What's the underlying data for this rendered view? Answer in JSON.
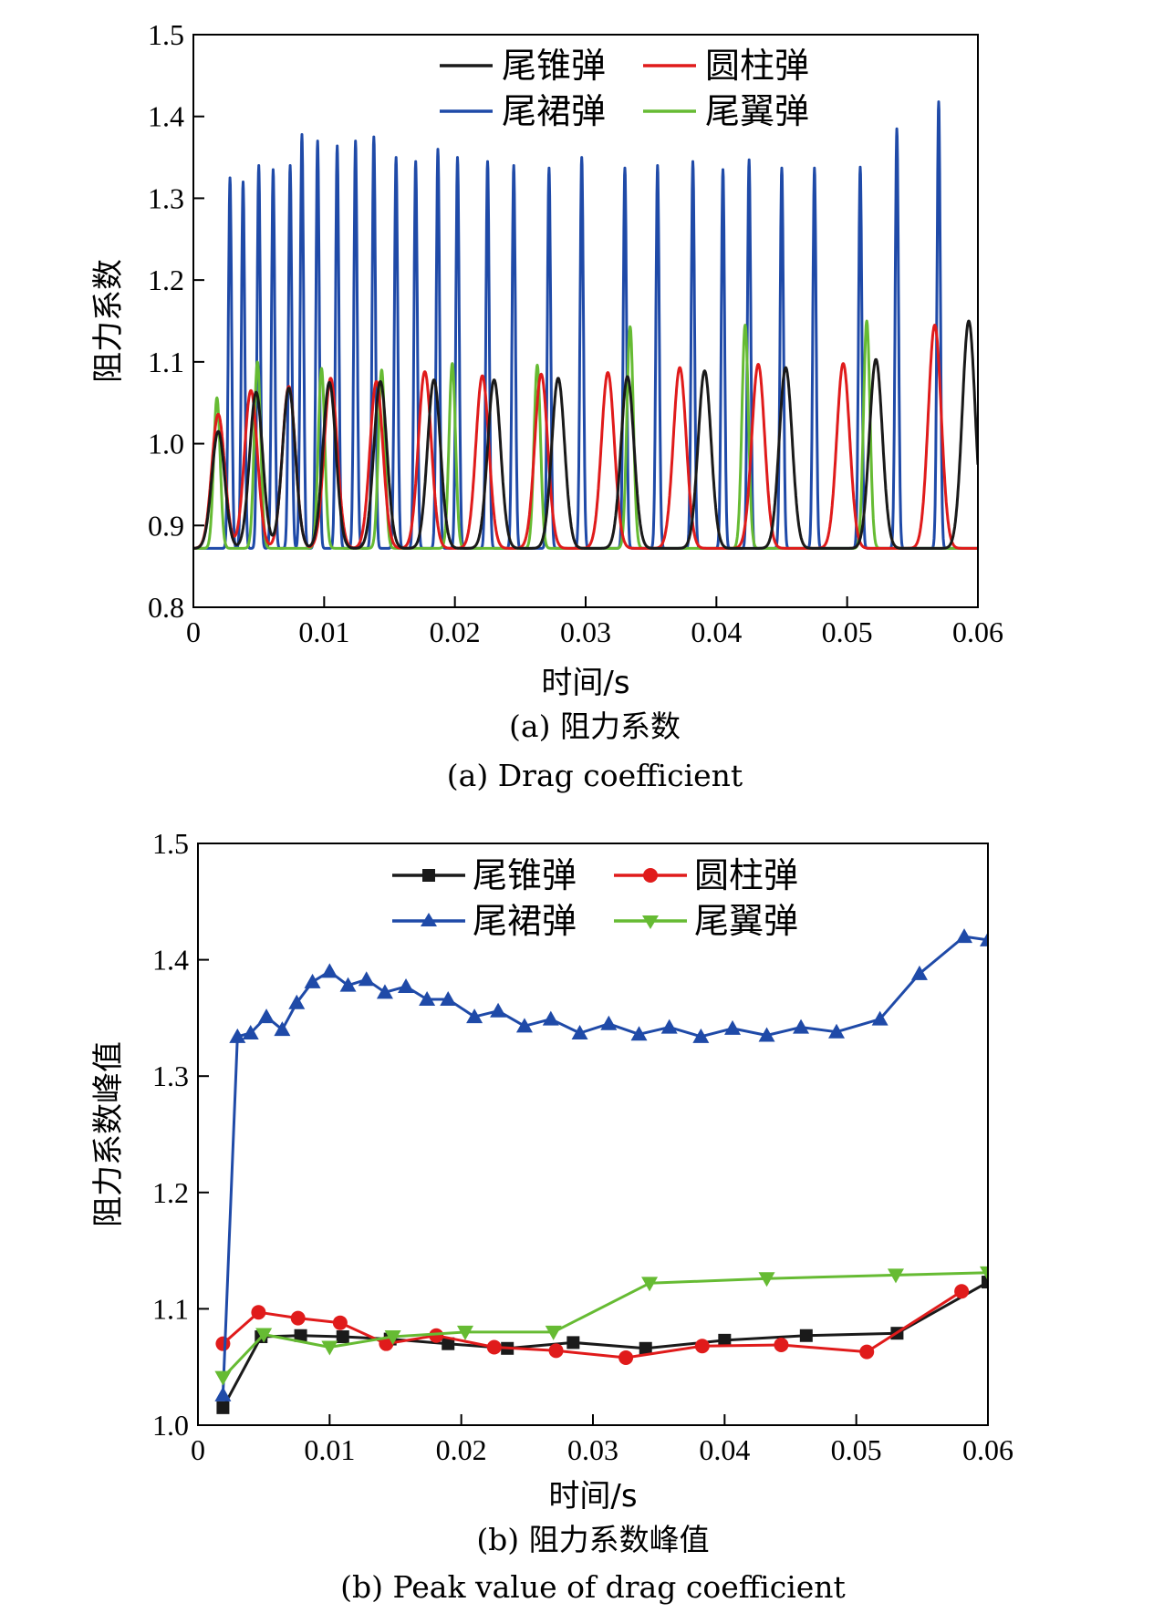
{
  "colors": {
    "wei_zhui": "#1a1a1a",
    "yuan_zhu": "#e01b1b",
    "wei_qun": "#1f4aa8",
    "wei_yi": "#66bb33"
  },
  "chart_data": [
    {
      "type": "line",
      "caption_cn": "(a) 阻力系数",
      "caption_en": "(a) Drag coefficient",
      "xlabel": "时间/s",
      "ylabel": "阻力系数",
      "xlim": [
        0,
        0.06
      ],
      "ylim": [
        0.8,
        1.5
      ],
      "xticks": [
        "0",
        "0.01",
        "0.02",
        "0.03",
        "0.04",
        "0.05",
        "0.06"
      ],
      "yticks": [
        "0.8",
        "0.9",
        "1.0",
        "1.1",
        "1.2",
        "1.3",
        "1.4",
        "1.5"
      ],
      "grid": false,
      "legend": "top",
      "baseline": 0.872,
      "series": [
        {
          "name": "尾锥弹",
          "color": "#1a1a1a",
          "width": 0.0007,
          "peaks": [
            [
              0.0019,
              1.015
            ],
            [
              0.0048,
              1.063
            ],
            [
              0.0073,
              1.068
            ],
            [
              0.0104,
              1.075
            ],
            [
              0.0143,
              1.076
            ],
            [
              0.0184,
              1.078
            ],
            [
              0.023,
              1.078
            ],
            [
              0.0279,
              1.08
            ],
            [
              0.0332,
              1.082
            ],
            [
              0.0391,
              1.089
            ],
            [
              0.0453,
              1.093
            ],
            [
              0.0522,
              1.103
            ],
            [
              0.0593,
              1.15
            ]
          ]
        },
        {
          "name": "圆柱弹",
          "color": "#e01b1b",
          "width": 0.0007,
          "peaks": [
            [
              0.0019,
              1.036
            ],
            [
              0.0044,
              1.065
            ],
            [
              0.0073,
              1.07
            ],
            [
              0.0105,
              1.08
            ],
            [
              0.014,
              1.076
            ],
            [
              0.0177,
              1.088
            ],
            [
              0.0221,
              1.083
            ],
            [
              0.0266,
              1.085
            ],
            [
              0.0317,
              1.087
            ],
            [
              0.0372,
              1.093
            ],
            [
              0.0432,
              1.097
            ],
            [
              0.0497,
              1.098
            ],
            [
              0.0567,
              1.145
            ]
          ]
        },
        {
          "name": "尾裙弹",
          "color": "#1f4aa8",
          "width": 0.00018,
          "peaks": [
            [
              0.0028,
              1.325
            ],
            [
              0.0038,
              1.32
            ],
            [
              0.005,
              1.34
            ],
            [
              0.0061,
              1.335
            ],
            [
              0.0074,
              1.34
            ],
            [
              0.0083,
              1.378
            ],
            [
              0.0095,
              1.37
            ],
            [
              0.011,
              1.364
            ],
            [
              0.0124,
              1.37
            ],
            [
              0.0138,
              1.375
            ],
            [
              0.0155,
              1.35
            ],
            [
              0.017,
              1.345
            ],
            [
              0.0187,
              1.36
            ],
            [
              0.0202,
              1.35
            ],
            [
              0.0225,
              1.345
            ],
            [
              0.0245,
              1.34
            ],
            [
              0.0272,
              1.337
            ],
            [
              0.0297,
              1.35
            ],
            [
              0.033,
              1.337
            ],
            [
              0.0355,
              1.34
            ],
            [
              0.0382,
              1.345
            ],
            [
              0.0405,
              1.335
            ],
            [
              0.0425,
              1.347
            ],
            [
              0.045,
              1.337
            ],
            [
              0.0475,
              1.337
            ],
            [
              0.051,
              1.338
            ],
            [
              0.0538,
              1.385
            ],
            [
              0.057,
              1.418
            ]
          ]
        },
        {
          "name": "尾翼弹",
          "color": "#66bb33",
          "width": 0.00035,
          "peaks": [
            [
              0.0018,
              1.056
            ],
            [
              0.0049,
              1.1
            ],
            [
              0.0098,
              1.092
            ],
            [
              0.0144,
              1.09
            ],
            [
              0.0198,
              1.098
            ],
            [
              0.0263,
              1.096
            ],
            [
              0.0334,
              1.143
            ],
            [
              0.0422,
              1.145
            ],
            [
              0.0515,
              1.15
            ]
          ]
        }
      ]
    },
    {
      "type": "line",
      "caption_cn": "(b) 阻力系数峰值",
      "caption_en": "(b) Peak value of drag coefficient",
      "xlabel": "时间/s",
      "ylabel": "阻力系数峰值",
      "xlim": [
        0,
        0.06
      ],
      "ylim": [
        1.0,
        1.5
      ],
      "xticks": [
        "0",
        "0.01",
        "0.02",
        "0.03",
        "0.04",
        "0.05",
        "0.06"
      ],
      "yticks": [
        "1.0",
        "1.1",
        "1.2",
        "1.3",
        "1.4",
        "1.5"
      ],
      "grid": false,
      "legend": "top",
      "series": [
        {
          "name": "尾锥弹",
          "color": "#1a1a1a",
          "marker": "square",
          "x": [
            0.0019,
            0.0048,
            0.0078,
            0.011,
            0.0146,
            0.019,
            0.0235,
            0.0285,
            0.034,
            0.04,
            0.0462,
            0.0531,
            0.06
          ],
          "y": [
            1.015,
            1.076,
            1.077,
            1.076,
            1.074,
            1.07,
            1.066,
            1.071,
            1.066,
            1.073,
            1.077,
            1.079,
            1.123
          ]
        },
        {
          "name": "圆柱弹",
          "color": "#e01b1b",
          "marker": "circle",
          "x": [
            0.0019,
            0.0046,
            0.0076,
            0.0108,
            0.0143,
            0.0181,
            0.0225,
            0.0272,
            0.0325,
            0.0383,
            0.0443,
            0.0508,
            0.058
          ],
          "y": [
            1.07,
            1.097,
            1.092,
            1.088,
            1.07,
            1.077,
            1.067,
            1.064,
            1.058,
            1.068,
            1.069,
            1.063,
            1.115
          ]
        },
        {
          "name": "尾裙弹",
          "color": "#1f4aa8",
          "marker": "triangle-up",
          "x": [
            0.0019,
            0.003,
            0.004,
            0.0052,
            0.0064,
            0.0075,
            0.0087,
            0.01,
            0.0114,
            0.0128,
            0.0142,
            0.0158,
            0.0174,
            0.019,
            0.021,
            0.0228,
            0.0248,
            0.0268,
            0.029,
            0.0312,
            0.0335,
            0.0358,
            0.0382,
            0.0406,
            0.0432,
            0.0458,
            0.0485,
            0.0518,
            0.0548,
            0.0582,
            0.06
          ],
          "y": [
            1.026,
            1.334,
            1.337,
            1.351,
            1.34,
            1.363,
            1.381,
            1.39,
            1.378,
            1.383,
            1.372,
            1.377,
            1.366,
            1.366,
            1.351,
            1.356,
            1.343,
            1.349,
            1.337,
            1.345,
            1.336,
            1.342,
            1.334,
            1.341,
            1.335,
            1.342,
            1.338,
            1.349,
            1.388,
            1.42,
            1.417
          ]
        },
        {
          "name": "尾翼弹",
          "color": "#66bb33",
          "marker": "triangle-down",
          "x": [
            0.0019,
            0.005,
            0.01,
            0.0148,
            0.0203,
            0.027,
            0.0343,
            0.0432,
            0.053,
            0.06
          ],
          "y": [
            1.041,
            1.078,
            1.067,
            1.076,
            1.08,
            1.08,
            1.122,
            1.126,
            1.129,
            1.131
          ]
        }
      ]
    }
  ]
}
